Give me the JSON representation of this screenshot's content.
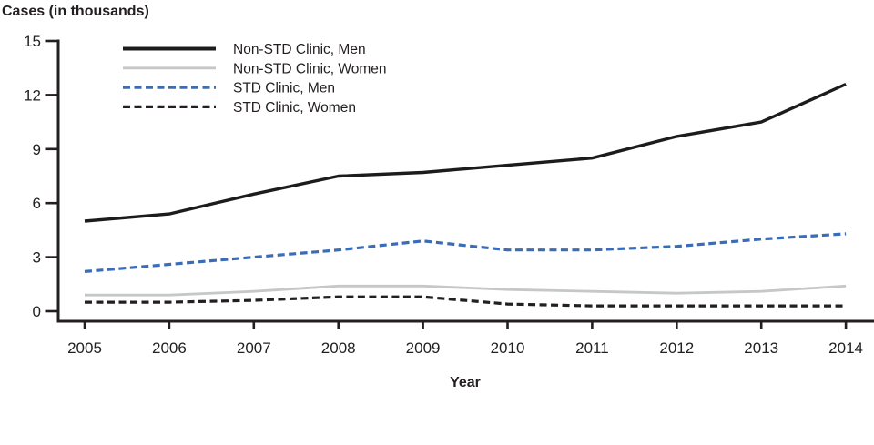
{
  "title": "Cases (in thousands)",
  "chart_data": {
    "type": "line",
    "title": "",
    "xlabel": "Year",
    "ylabel": "Cases (in thousands)",
    "x": [
      2005,
      2006,
      2007,
      2008,
      2009,
      2010,
      2011,
      2012,
      2013,
      2014
    ],
    "ylim": [
      0,
      15
    ],
    "yticks": [
      0,
      3,
      6,
      9,
      12,
      15
    ],
    "grid": false,
    "legend_position": "top-left-inside",
    "series": [
      {
        "name": "Non-STD Clinic, Men",
        "color": "#1d1c1b",
        "dash": "",
        "width": 3.4,
        "values": [
          5.0,
          5.4,
          6.5,
          7.5,
          7.7,
          8.1,
          8.5,
          9.7,
          10.5,
          12.6
        ]
      },
      {
        "name": "Non-STD Clinic, Women",
        "color": "#c6c7c9",
        "dash": "",
        "width": 2.8,
        "values": [
          0.9,
          0.9,
          1.1,
          1.4,
          1.4,
          1.2,
          1.1,
          1.0,
          1.1,
          1.4
        ]
      },
      {
        "name": "STD Clinic, Men",
        "color": "#3a6db5",
        "dash": "8 4.5",
        "width": 3.2,
        "values": [
          2.2,
          2.6,
          3.0,
          3.4,
          3.9,
          3.4,
          3.4,
          3.6,
          4.0,
          4.3
        ]
      },
      {
        "name": "STD Clinic, Women",
        "color": "#231f20",
        "dash": "8 4.5",
        "width": 3.2,
        "values": [
          0.5,
          0.5,
          0.6,
          0.8,
          0.8,
          0.4,
          0.3,
          0.3,
          0.3,
          0.3
        ]
      }
    ],
    "colors": {
      "axis": "#231f20",
      "text": "#231f20"
    }
  }
}
